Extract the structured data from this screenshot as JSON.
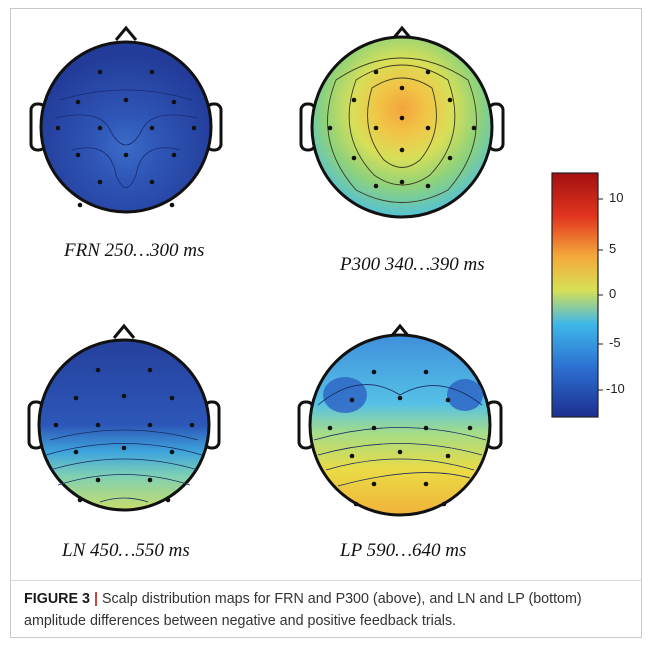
{
  "figure": {
    "maps": [
      {
        "id": "frn",
        "label": "FRN 250…300 ms"
      },
      {
        "id": "p300",
        "label": "P300 340…390 ms"
      },
      {
        "id": "ln",
        "label": "LN 450…550 ms"
      },
      {
        "id": "lp",
        "label": "LP 590…640 ms"
      }
    ],
    "colorbar": {
      "ticks": [
        "10",
        "5",
        "0",
        "-5",
        "-10"
      ],
      "range": [
        -12,
        12
      ],
      "colors": [
        "#1c2f8f",
        "#2c6fd1",
        "#3fb7e8",
        "#d8e055",
        "#f4a83a",
        "#e2361f",
        "#a21010"
      ]
    }
  },
  "caption": {
    "figure_number": "FIGURE 3",
    "separator": "|",
    "text": "Scalp distribution maps for FRN and P300 (above), and LN and LP (bottom) amplitude differences between negative and positive feedback trials."
  }
}
